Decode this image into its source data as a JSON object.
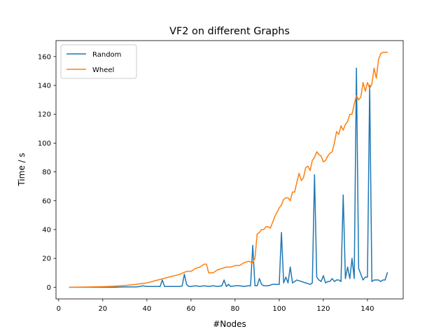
{
  "chart_data": {
    "type": "line",
    "title": "VF2 on different Graphs",
    "xlabel": "#Nodes",
    "ylabel": "Time / s",
    "xlim": [
      -1.2,
      156.2
    ],
    "ylim": [
      -8.1,
      171.1
    ],
    "xticks": [
      0,
      20,
      40,
      60,
      80,
      100,
      120,
      140
    ],
    "yticks": [
      0,
      20,
      40,
      60,
      80,
      100,
      120,
      140,
      160
    ],
    "grid": false,
    "legend_position": "top-left",
    "series": [
      {
        "name": "Random",
        "color": "#1f77b4",
        "x": [
          5,
          10,
          15,
          20,
          25,
          30,
          35,
          37,
          38,
          40,
          45,
          46,
          47,
          48,
          50,
          55,
          56,
          57,
          58,
          59,
          60,
          62,
          64,
          66,
          68,
          70,
          72,
          74,
          75,
          76,
          77,
          78,
          80,
          82,
          84,
          86,
          87,
          88,
          89,
          90,
          91,
          92,
          93,
          95,
          97,
          99,
          100,
          101,
          102,
          103,
          104,
          105,
          106,
          107,
          108,
          110,
          112,
          114,
          115,
          116,
          117,
          118,
          119,
          120,
          121,
          122,
          123,
          124,
          125,
          126,
          127,
          128,
          129,
          130,
          131,
          132,
          133,
          134,
          135,
          136,
          137,
          138,
          139,
          140,
          141,
          142,
          143,
          144,
          145,
          146,
          147,
          148,
          149
        ],
        "y": [
          0,
          0,
          0,
          0,
          0,
          0.2,
          0.2,
          0.5,
          1,
          0.5,
          0.5,
          0.5,
          5,
          0.5,
          0.5,
          0.5,
          1,
          9,
          2,
          0.5,
          0.5,
          1,
          0.5,
          1,
          0.5,
          1,
          0.5,
          1,
          5,
          0.5,
          2,
          0.5,
          1,
          1,
          0.5,
          1,
          1,
          29,
          1,
          1,
          6,
          2,
          1,
          1,
          2,
          2,
          2,
          38,
          3,
          7,
          3,
          14,
          3,
          4,
          5,
          4,
          3,
          2,
          3,
          78,
          7,
          5,
          4,
          8,
          3,
          4,
          4,
          6,
          4,
          5,
          5,
          4,
          64,
          6,
          14,
          6,
          20,
          6,
          152,
          13,
          9,
          5,
          7,
          7,
          140,
          4,
          5,
          5,
          5,
          4,
          5,
          5,
          10
        ]
      },
      {
        "name": "Wheel",
        "color": "#ff7f0e",
        "x": [
          5,
          10,
          15,
          20,
          25,
          30,
          35,
          40,
          45,
          50,
          55,
          58,
          60,
          62,
          64,
          66,
          67,
          68,
          69,
          70,
          72,
          74,
          76,
          78,
          80,
          82,
          84,
          86,
          88,
          89,
          90,
          91,
          92,
          93,
          94,
          95,
          96,
          97,
          98,
          99,
          100,
          101,
          102,
          103,
          104,
          105,
          106,
          107,
          108,
          109,
          110,
          111,
          112,
          113,
          114,
          115,
          116,
          117,
          118,
          119,
          120,
          121,
          122,
          123,
          124,
          125,
          126,
          127,
          128,
          129,
          130,
          131,
          132,
          133,
          134,
          135,
          136,
          137,
          138,
          139,
          140,
          141,
          142,
          143,
          144,
          145,
          146,
          147,
          148,
          149
        ],
        "y": [
          0,
          0.1,
          0.2,
          0.4,
          0.7,
          1.2,
          2,
          3,
          5,
          7,
          9,
          11,
          11,
          13,
          14,
          16,
          16,
          10,
          10,
          10,
          12,
          13,
          14,
          14,
          15,
          15,
          17,
          18,
          17,
          20,
          37,
          38,
          40,
          40,
          42,
          42,
          41,
          45,
          49,
          52,
          55,
          57,
          61,
          62,
          62,
          60,
          66,
          66,
          73,
          79,
          74,
          76,
          83,
          84,
          81,
          88,
          90,
          94,
          92,
          91,
          87,
          88,
          91,
          93,
          94,
          100,
          108,
          106,
          112,
          109,
          113,
          115,
          120,
          120,
          127,
          133,
          130,
          132,
          142,
          136,
          142,
          138,
          141,
          152,
          145,
          158,
          162,
          163,
          163,
          163
        ]
      }
    ]
  }
}
